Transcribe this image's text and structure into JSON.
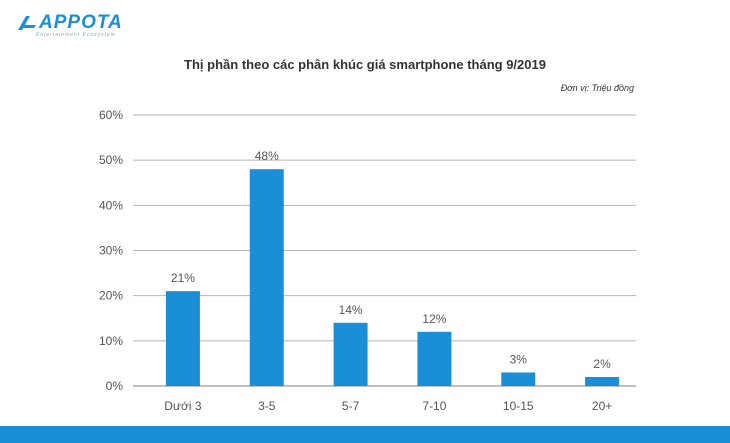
{
  "brand": {
    "name": "APPOTA",
    "tagline": "Entertainment Ecosystem",
    "color": "#1a8fd8"
  },
  "header": {
    "title": "Thị phần theo các phân khúc giá smartphone tháng 9/2019",
    "unit": "Đơn vị: Triệu đồng"
  },
  "chart_data": {
    "type": "bar",
    "title": "Thị phần theo các phân khúc giá smartphone tháng 9/2019",
    "xlabel": "",
    "ylabel": "",
    "categories": [
      "Dưới 3",
      "3-5",
      "5-7",
      "7-10",
      "10-15",
      "20+"
    ],
    "values": [
      21,
      48,
      14,
      12,
      3,
      2
    ],
    "data_labels": [
      "21%",
      "48%",
      "14%",
      "12%",
      "3%",
      "2%"
    ],
    "ylim": [
      0,
      60
    ],
    "yticks": [
      0,
      10,
      20,
      30,
      40,
      50,
      60
    ],
    "ytick_labels": [
      "0%",
      "10%",
      "20%",
      "30%",
      "40%",
      "50%",
      "60%"
    ],
    "grid": true,
    "legend": "none",
    "bar_color": "#1a8fd8"
  }
}
